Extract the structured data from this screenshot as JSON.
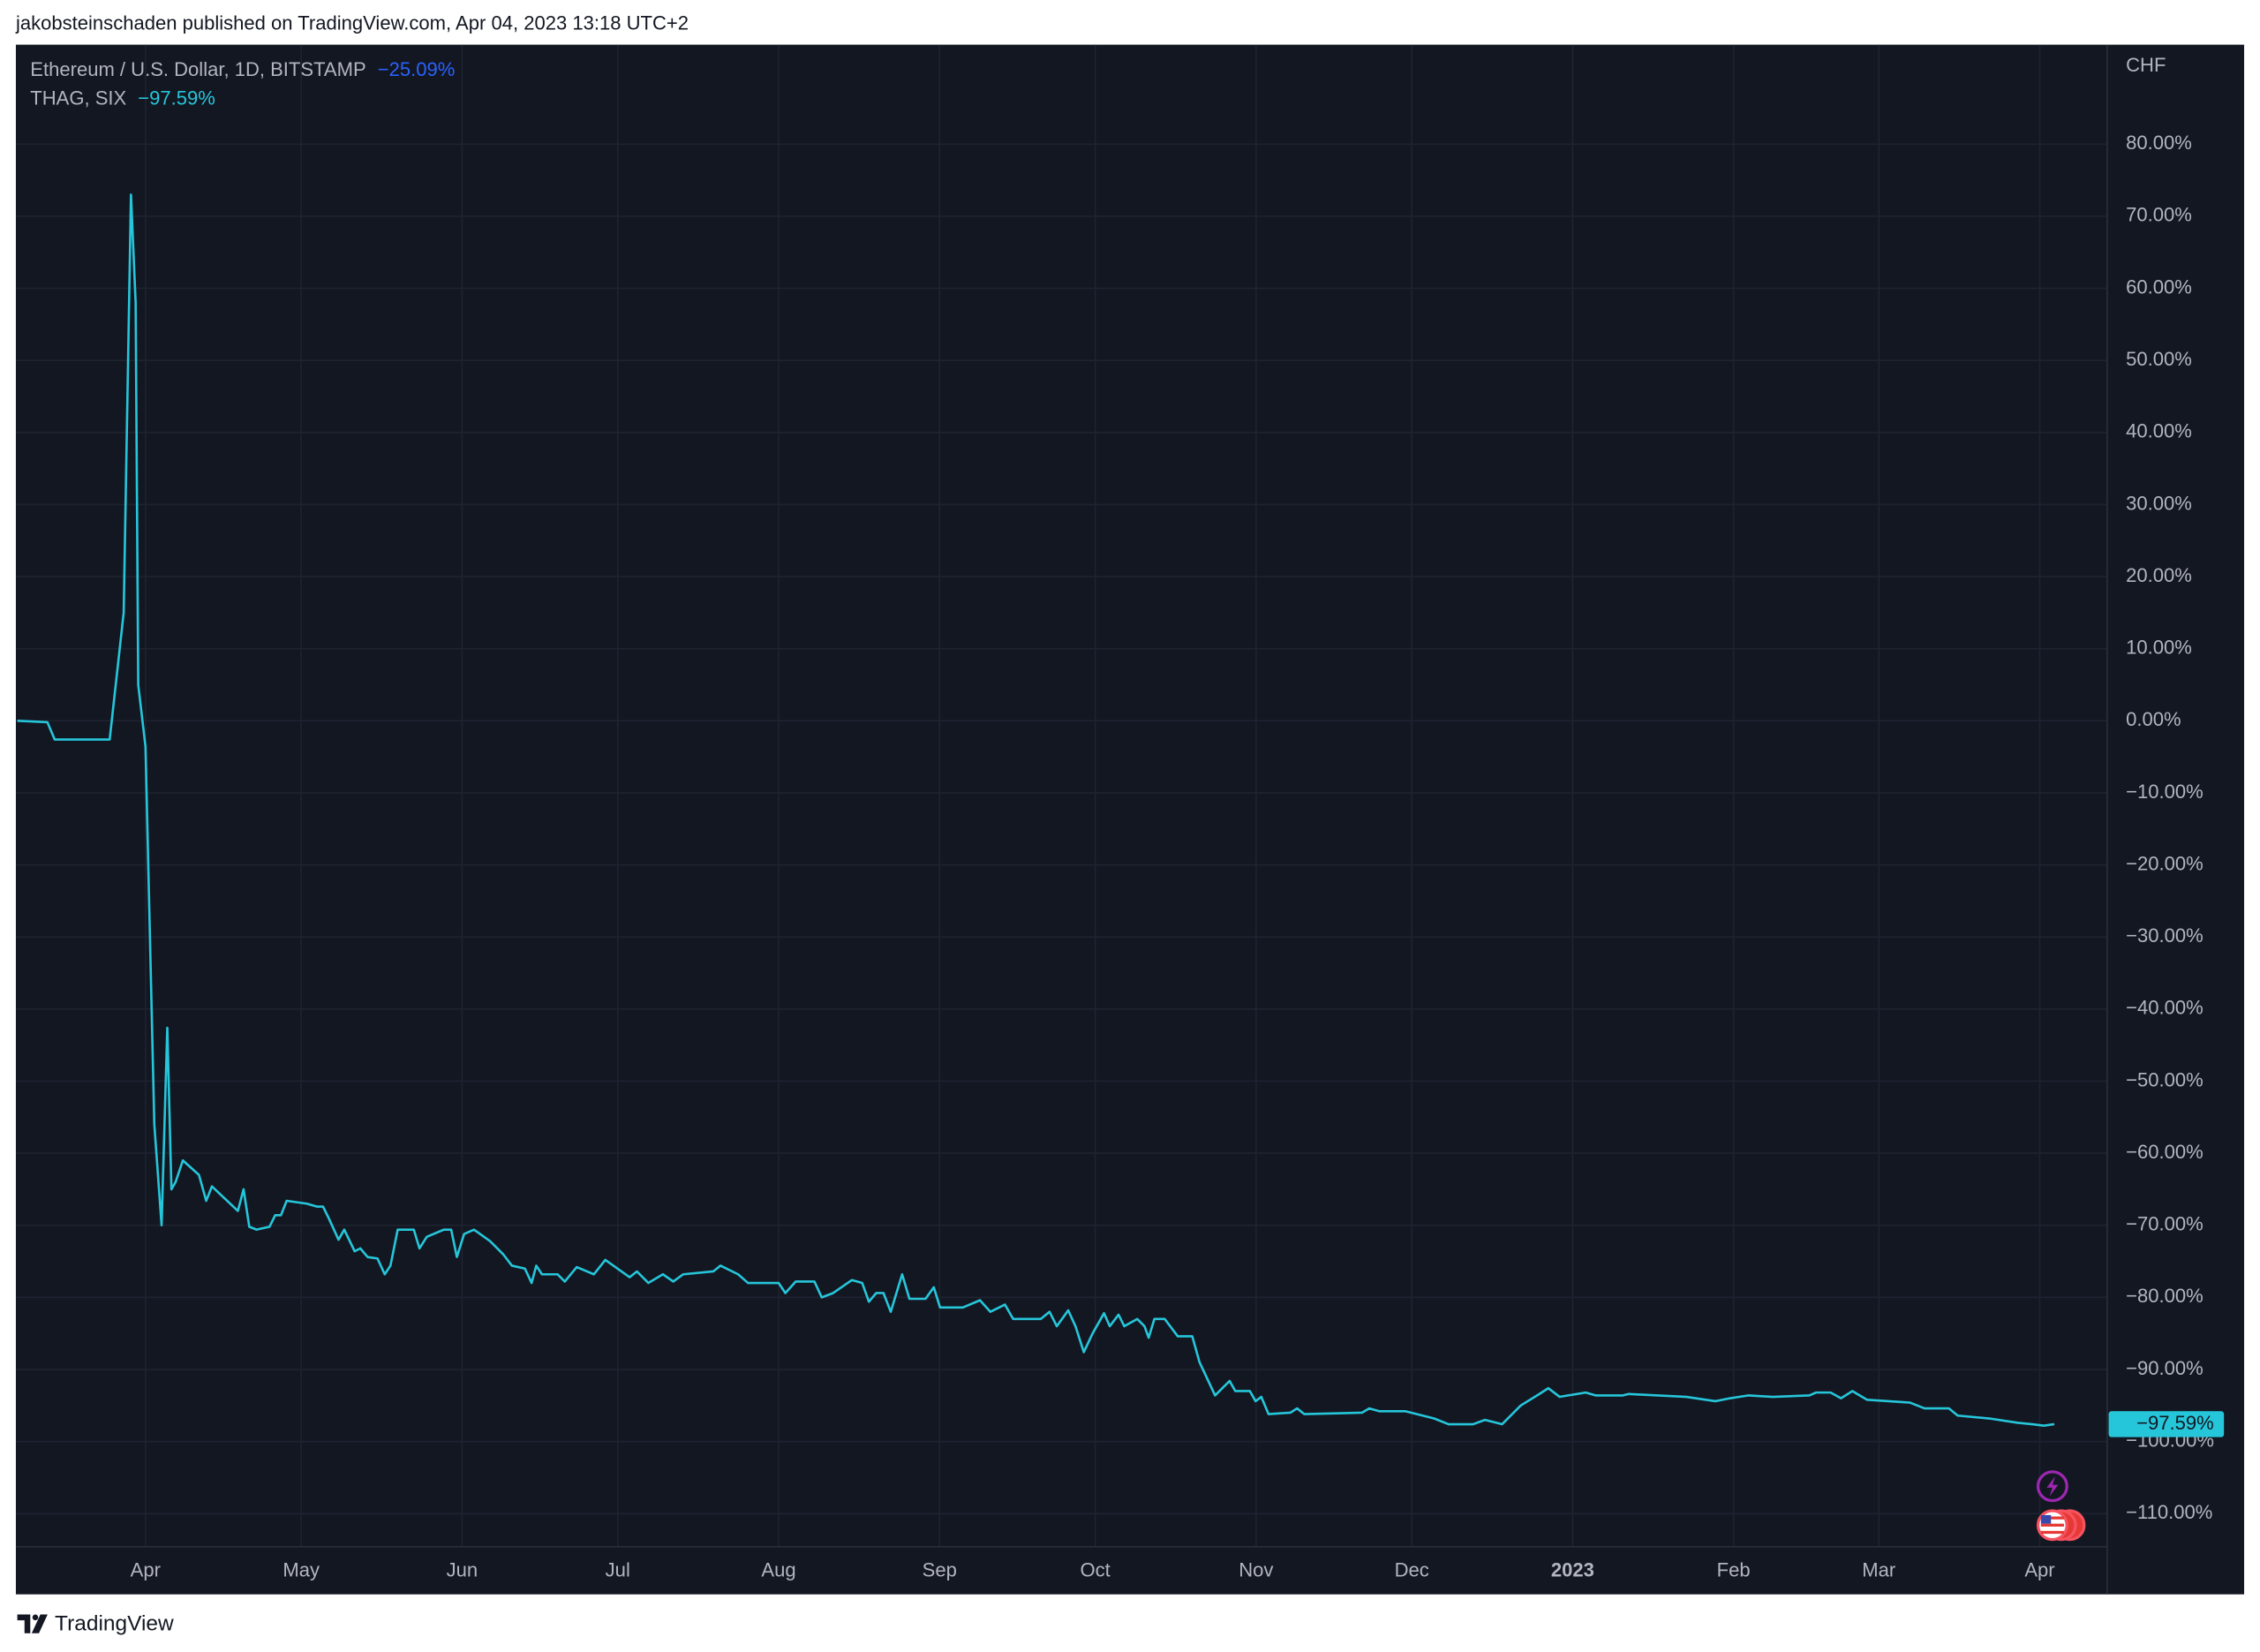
{
  "header": "jakobsteinschaden published on TradingView.com, Apr 04, 2023 13:18 UTC+2",
  "brand": "TradingView",
  "chart_data": {
    "type": "line",
    "y_unit": "CHF",
    "background": "#131722",
    "grid": true,
    "xlim": [
      -24.7,
      378
    ],
    "ylim": [
      -114.6,
      93.6
    ],
    "xticks": [
      {
        "value": 0,
        "label": "Apr"
      },
      {
        "value": 30,
        "label": "May"
      },
      {
        "value": 61,
        "label": "Jun"
      },
      {
        "value": 91,
        "label": "Jul"
      },
      {
        "value": 122,
        "label": "Aug"
      },
      {
        "value": 153,
        "label": "Sep"
      },
      {
        "value": 183,
        "label": "Oct"
      },
      {
        "value": 214,
        "label": "Nov"
      },
      {
        "value": 244,
        "label": "Dec"
      },
      {
        "value": 275,
        "label": "2023",
        "major": true
      },
      {
        "value": 306,
        "label": "Feb"
      },
      {
        "value": 334,
        "label": "Mar"
      },
      {
        "value": 365,
        "label": "Apr"
      }
    ],
    "yticks": [
      {
        "value": 80,
        "label": "80.00%"
      },
      {
        "value": 70,
        "label": "70.00%"
      },
      {
        "value": 60,
        "label": "60.00%"
      },
      {
        "value": 50,
        "label": "50.00%"
      },
      {
        "value": 40,
        "label": "40.00%"
      },
      {
        "value": 30,
        "label": "30.00%"
      },
      {
        "value": 20,
        "label": "20.00%"
      },
      {
        "value": 10,
        "label": "10.00%"
      },
      {
        "value": 0,
        "label": "0.00%"
      },
      {
        "value": -10,
        "label": "−10.00%"
      },
      {
        "value": -20,
        "label": "−20.00%"
      },
      {
        "value": -30,
        "label": "−30.00%"
      },
      {
        "value": -40,
        "label": "−40.00%"
      },
      {
        "value": -50,
        "label": "−50.00%"
      },
      {
        "value": -60,
        "label": "−60.00%"
      },
      {
        "value": -70,
        "label": "−70.00%"
      },
      {
        "value": -80,
        "label": "−80.00%"
      },
      {
        "value": -90,
        "label": "−90.00%"
      },
      {
        "value": -100,
        "label": "−100.00%"
      },
      {
        "value": -110,
        "label": "−110.00%"
      }
    ],
    "x": [
      -24.7,
      -18.9,
      -17.5,
      -6.9,
      -4.2,
      -2.8,
      -1.9,
      -1.4,
      0,
      1.7,
      3.1,
      4.2,
      5,
      5.8,
      7.2,
      10.3,
      11.7,
      12.8,
      17.8,
      18.9,
      20,
      21.4,
      23.9,
      25,
      26.1,
      27.2,
      31.1,
      33,
      34.2,
      35.3,
      37.2,
      38.3,
      40.3,
      41.4,
      42.8,
      44.7,
      46.1,
      47.2,
      48.6,
      51.7,
      52.8,
      54.2,
      57.5,
      58.9,
      60,
      61.4,
      63.3,
      66.4,
      68.9,
      70.6,
      73.1,
      74.4,
      75.3,
      76.4,
      79.4,
      80.8,
      83.1,
      86.4,
      88.6,
      93.3,
      94.7,
      96.9,
      99.7,
      101.7,
      103.6,
      109.4,
      110.8,
      114.2,
      116.1,
      122,
      123.3,
      125.3,
      128.9,
      130.3,
      132.5,
      136.1,
      138.1,
      139.4,
      140.8,
      142.2,
      143.6,
      145.8,
      147.2,
      150.3,
      151.9,
      153.1,
      157.5,
      160.8,
      162.8,
      165.6,
      167.2,
      172.5,
      174.2,
      175.6,
      177.8,
      179.2,
      180.8,
      182.5,
      184.7,
      185.8,
      187.5,
      188.6,
      191.1,
      192.5,
      193.3,
      194.4,
      196.4,
      198.9,
      201.7,
      203.1,
      206.1,
      207.5,
      208.9,
      210,
      212.8,
      213.9,
      215,
      216.4,
      220.6,
      221.9,
      223.3,
      234.4,
      235.8,
      237.8,
      242.8,
      248.3,
      251.1,
      255.8,
      258.1,
      261.4,
      265,
      268.6,
      270.3,
      272.5,
      277.5,
      279.4,
      284.7,
      285.8,
      291.4,
      296.9,
      302.5,
      305.3,
      308.9,
      313.6,
      320.6,
      321.9,
      324.7,
      326.7,
      328.9,
      331.7,
      340,
      342.8,
      347.5,
      349.2,
      355.3,
      360.8,
      363.6,
      365.8,
      367.8
    ],
    "series": [
      {
        "name": "Ethereum / U.S. Dollar, 1D, BITSTAMP",
        "color": "#2962ff",
        "change_label": "−25.09%"
      },
      {
        "name": "THAG, SIX",
        "color": "#26c6da",
        "change_label": "−97.59%",
        "last_value_label": "−97.59%",
        "values": [
          0,
          -0.2,
          -2.6,
          -2.6,
          15,
          73,
          58,
          5,
          -3.6,
          -56,
          -70,
          -42.6,
          -65,
          -64,
          -61,
          -63,
          -66.6,
          -64.6,
          -68,
          -65,
          -70.2,
          -70.6,
          -70.2,
          -68.6,
          -68.6,
          -66.6,
          -67,
          -67.4,
          -67.4,
          -69,
          -72,
          -70.6,
          -73.6,
          -73.2,
          -74.4,
          -74.6,
          -76.8,
          -75.6,
          -70.6,
          -70.6,
          -73.2,
          -71.6,
          -70.6,
          -70.6,
          -74.4,
          -71.2,
          -70.6,
          -72.2,
          -74,
          -75.6,
          -76,
          -78,
          -75.6,
          -76.8,
          -76.8,
          -77.8,
          -75.8,
          -76.8,
          -74.8,
          -77.2,
          -76.4,
          -78,
          -76.8,
          -77.8,
          -76.8,
          -76.4,
          -75.6,
          -76.8,
          -78,
          -78,
          -79.4,
          -77.8,
          -77.8,
          -80,
          -79.4,
          -77.6,
          -78,
          -80.6,
          -79.4,
          -79.4,
          -82,
          -76.8,
          -80.2,
          -80.2,
          -78.6,
          -81.4,
          -81.4,
          -80.4,
          -82,
          -81,
          -83,
          -83,
          -82,
          -84,
          -81.8,
          -84,
          -87.6,
          -85,
          -82.2,
          -84,
          -82.4,
          -84,
          -83,
          -84,
          -85.6,
          -83,
          -83,
          -85.4,
          -85.4,
          -89,
          -93.6,
          -92.6,
          -91.6,
          -93,
          -93,
          -94.4,
          -93.8,
          -96.2,
          -96,
          -95.4,
          -96.2,
          -96,
          -95.4,
          -95.8,
          -95.8,
          -96.8,
          -97.6,
          -97.6,
          -97,
          -97.6,
          -95,
          -93.4,
          -92.6,
          -93.8,
          -93.2,
          -93.6,
          -93.6,
          -93.4,
          -93.6,
          -93.8,
          -94.4,
          -94,
          -93.6,
          -93.8,
          -93.6,
          -93.2,
          -93.2,
          -94,
          -93,
          -94.2,
          -94.6,
          -95.4,
          -95.4,
          -96.4,
          -96.8,
          -97.4,
          -97.6,
          -97.8,
          -97.59
        ]
      }
    ]
  }
}
